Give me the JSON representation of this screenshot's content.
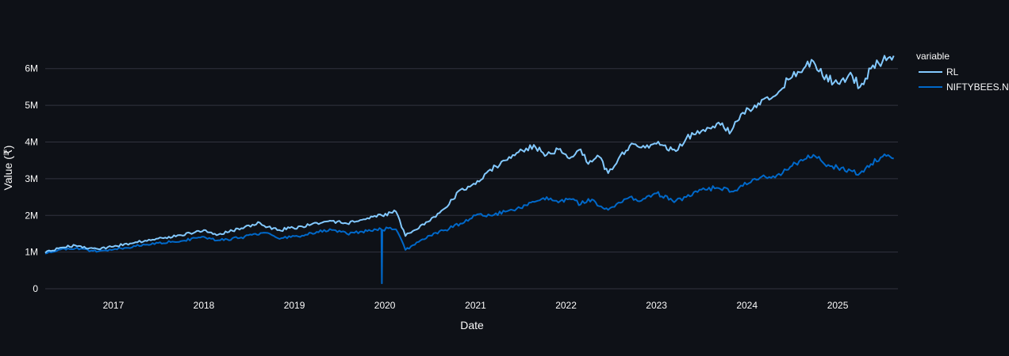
{
  "colors": {
    "background": "#0e1117",
    "grid": "#31333f",
    "text": "#fafafa"
  },
  "chart_data": {
    "type": "line",
    "xlabel": "Date",
    "ylabel": "Value (₹)",
    "x_ticks": [
      "2017",
      "2018",
      "2019",
      "2020",
      "2021",
      "2022",
      "2023",
      "2024",
      "2025"
    ],
    "y_ticks": [
      "0",
      "1M",
      "2M",
      "3M",
      "4M",
      "5M",
      "6M"
    ],
    "xlim": [
      "2016-04-01",
      "2025-09-01"
    ],
    "ylim": [
      -150000,
      6900000
    ],
    "grid": true,
    "legend": {
      "title": "variable",
      "placement": "top-right"
    },
    "series": [
      {
        "name": "RL",
        "color": "#83c9ff",
        "x": [
          "2016-04-01",
          "2016-06-01",
          "2016-08-01",
          "2016-11-01",
          "2017-01-01",
          "2017-04-01",
          "2017-07-01",
          "2017-10-01",
          "2018-01-01",
          "2018-03-01",
          "2018-06-01",
          "2018-08-15",
          "2018-09-01",
          "2018-11-01",
          "2019-02-01",
          "2019-04-01",
          "2019-06-01",
          "2019-08-01",
          "2019-10-01",
          "2019-12-20",
          "2020-02-15",
          "2020-03-24",
          "2020-05-01",
          "2020-07-01",
          "2020-09-01",
          "2020-11-01",
          "2021-01-01",
          "2021-03-01",
          "2021-05-01",
          "2021-07-01",
          "2021-09-01",
          "2021-10-15",
          "2021-12-01",
          "2022-01-15",
          "2022-03-01",
          "2022-04-01",
          "2022-05-15",
          "2022-06-20",
          "2022-08-01",
          "2022-09-15",
          "2022-11-01",
          "2023-01-01",
          "2023-03-20",
          "2023-05-01",
          "2023-07-01",
          "2023-09-01",
          "2023-10-30",
          "2023-12-15",
          "2024-02-01",
          "2024-03-15",
          "2024-05-01",
          "2024-06-15",
          "2024-08-01",
          "2024-09-25",
          "2024-11-01",
          "2025-01-01",
          "2025-03-01",
          "2025-04-01",
          "2025-05-15",
          "2025-07-01",
          "2025-08-15"
        ],
        "values": [
          980000,
          1120000,
          1180000,
          1080000,
          1150000,
          1270000,
          1370000,
          1460000,
          1600000,
          1480000,
          1650000,
          1800000,
          1720000,
          1600000,
          1700000,
          1800000,
          1850000,
          1780000,
          1880000,
          2000000,
          2100000,
          1440000,
          1600000,
          1850000,
          2200000,
          2700000,
          2850000,
          3250000,
          3500000,
          3800000,
          3850000,
          3650000,
          3800000,
          3550000,
          3800000,
          3400000,
          3600000,
          3150000,
          3550000,
          3900000,
          3850000,
          3950000,
          3750000,
          4100000,
          4300000,
          4500000,
          4300000,
          4800000,
          5000000,
          5200000,
          5300000,
          5700000,
          5900000,
          6200000,
          5800000,
          5600000,
          5800000,
          5500000,
          6000000,
          6200000,
          6350000
        ]
      },
      {
        "name": "NIFTYBEES.NS",
        "color": "#0068c9",
        "x": [
          "2016-04-01",
          "2016-06-01",
          "2016-08-01",
          "2016-11-01",
          "2017-01-01",
          "2017-04-01",
          "2017-07-01",
          "2017-10-01",
          "2018-01-01",
          "2018-03-01",
          "2018-06-01",
          "2018-09-01",
          "2018-10-26",
          "2019-02-01",
          "2019-04-01",
          "2019-06-01",
          "2019-08-01",
          "2019-10-01",
          "2019-12-18",
          "2019-12-20",
          "2019-12-22",
          "2020-01-15",
          "2020-02-15",
          "2020-03-24",
          "2020-05-01",
          "2020-07-01",
          "2020-09-01",
          "2020-11-01",
          "2021-01-01",
          "2021-03-01",
          "2021-05-01",
          "2021-07-01",
          "2021-10-15",
          "2021-12-01",
          "2022-01-15",
          "2022-03-01",
          "2022-04-01",
          "2022-06-20",
          "2022-08-01",
          "2022-09-15",
          "2022-11-01",
          "2023-01-01",
          "2023-03-20",
          "2023-05-01",
          "2023-07-01",
          "2023-09-01",
          "2023-10-30",
          "2023-12-15",
          "2024-02-01",
          "2024-03-15",
          "2024-05-01",
          "2024-07-01",
          "2024-09-25",
          "2024-11-01",
          "2025-01-01",
          "2025-03-01",
          "2025-04-01",
          "2025-05-15",
          "2025-07-01",
          "2025-08-15"
        ],
        "values": [
          960000,
          1070000,
          1100000,
          1020000,
          1070000,
          1160000,
          1250000,
          1300000,
          1420000,
          1320000,
          1400000,
          1530000,
          1380000,
          1450000,
          1550000,
          1600000,
          1500000,
          1560000,
          1620000,
          150000,
          1600000,
          1650000,
          1620000,
          1060000,
          1200000,
          1450000,
          1600000,
          1780000,
          2000000,
          2000000,
          2100000,
          2200000,
          2500000,
          2350000,
          2450000,
          2300000,
          2450000,
          2150000,
          2350000,
          2500000,
          2400000,
          2600000,
          2400000,
          2500000,
          2700000,
          2750000,
          2650000,
          2800000,
          3000000,
          3050000,
          3100000,
          3350000,
          3650000,
          3450000,
          3300000,
          3200000,
          3150000,
          3400000,
          3600000,
          3550000
        ]
      }
    ]
  }
}
